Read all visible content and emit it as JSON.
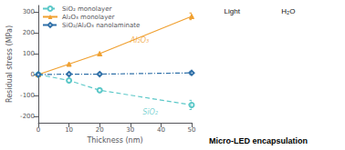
{
  "chart_data": {
    "type": "line",
    "x_label": "Thickness (nm)",
    "y_label": "Residual stress (MPa)",
    "xlim": [
      0,
      50
    ],
    "ylim": [
      -230,
      330
    ],
    "xticks": [
      0,
      10,
      20,
      30,
      40,
      50
    ],
    "yticks": [
      -200,
      -100,
      0,
      100,
      200,
      300
    ],
    "grid": false,
    "legend": "upper left",
    "x": [
      0,
      10,
      20,
      50
    ],
    "series": [
      {
        "name": "SiO₂ monolayer",
        "color": "#5bc8c8",
        "marker": "hollow_circle",
        "line_style": "dashed",
        "values": [
          0,
          -28,
          -75,
          -145
        ],
        "error": [
          null,
          null,
          null,
          22
        ]
      },
      {
        "name": "Al₂O₃ monolayer",
        "color": "#f0a030",
        "marker": "triangle",
        "line_style": "solid",
        "values": [
          0,
          50,
          100,
          278
        ],
        "error": [
          null,
          null,
          null,
          16
        ]
      },
      {
        "name": "SiO₂/Al₂O₃ nanolaminate",
        "color": "#3070a8",
        "marker": "hollow_diamond",
        "line_style": "dashdot",
        "values": [
          0,
          2,
          2,
          8
        ],
        "error": [
          null,
          null,
          null,
          8
        ]
      }
    ],
    "annotations": [
      {
        "x": 30,
        "y": 165,
        "text": "Al₂O₃",
        "color": "#f0a030"
      },
      {
        "x": 34,
        "y": -178,
        "text": "SiO₂",
        "color": "#5bc8c8"
      },
      {
        "text": "Light"
      },
      {
        "text": "H₂O"
      },
      {
        "text": "Micro-LED encapsulation"
      }
    ]
  }
}
